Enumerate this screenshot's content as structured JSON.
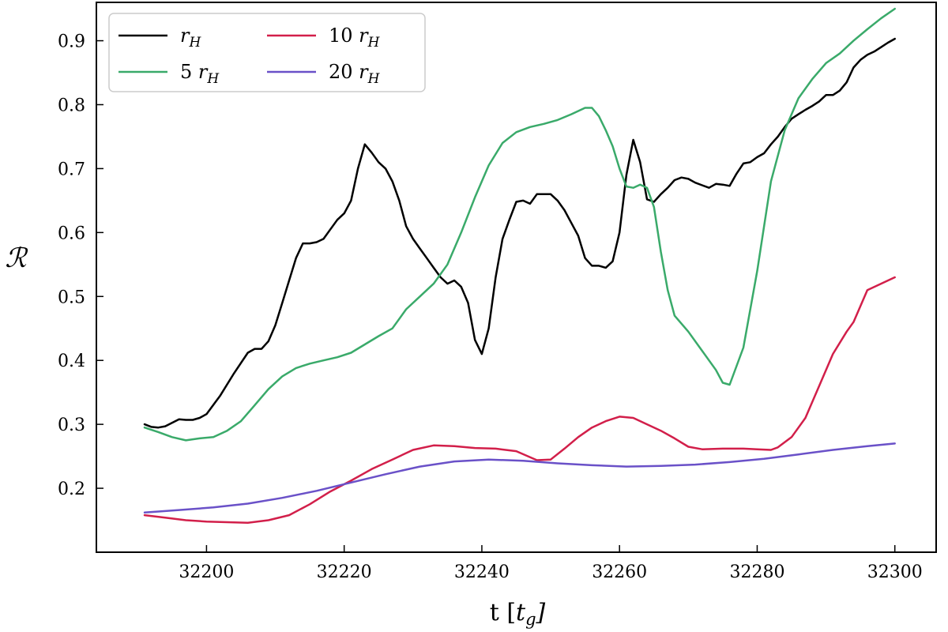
{
  "chart_data": {
    "type": "line",
    "title": "",
    "xlabel": "t [t_g]",
    "ylabel": "ℛ",
    "xlim": [
      32184,
      32306
    ],
    "ylim": [
      0.1,
      0.96
    ],
    "xticks": [
      32200,
      32220,
      32240,
      32260,
      32280,
      32300
    ],
    "yticks": [
      0.2,
      0.3,
      0.4,
      0.5,
      0.6,
      0.7,
      0.8,
      0.9
    ],
    "grid": false,
    "legend_position": "top-left",
    "series": [
      {
        "name": "r_H",
        "color": "#000000",
        "x": [
          32191,
          32192,
          32193,
          32194,
          32196,
          32197,
          32198,
          32199,
          32200,
          32202,
          32204,
          32206,
          32207,
          32208,
          32209,
          32210,
          32211,
          32212,
          32213,
          32214,
          32215,
          32216,
          32217,
          32218,
          32219,
          32220,
          32221,
          32222,
          32223,
          32224,
          32225,
          32226,
          32227,
          32228,
          32229,
          32230,
          32231,
          32232,
          32233,
          32234,
          32235,
          32236,
          32237,
          32238,
          32239,
          32240,
          32241,
          32242,
          32243,
          32244,
          32245,
          32246,
          32247,
          32248,
          32249,
          32250,
          32251,
          32252,
          32253,
          32254,
          32255,
          32256,
          32257,
          32258,
          32259,
          32260,
          32261,
          32262,
          32263,
          32264,
          32265,
          32266,
          32267,
          32268,
          32269,
          32270,
          32271,
          32272,
          32273,
          32274,
          32275,
          32276,
          32277,
          32278,
          32279,
          32280,
          32281,
          32282,
          32283,
          32284,
          32285,
          32286,
          32287,
          32288,
          32289,
          32290,
          32291,
          32292,
          32293,
          32294,
          32295,
          32296,
          32297,
          32298,
          32299,
          32300
        ],
        "values": [
          0.3,
          0.296,
          0.295,
          0.297,
          0.308,
          0.307,
          0.307,
          0.31,
          0.316,
          0.345,
          0.38,
          0.412,
          0.418,
          0.418,
          0.43,
          0.455,
          0.49,
          0.525,
          0.56,
          0.583,
          0.583,
          0.585,
          0.59,
          0.605,
          0.62,
          0.63,
          0.65,
          0.7,
          0.738,
          0.725,
          0.71,
          0.7,
          0.68,
          0.65,
          0.61,
          0.59,
          0.575,
          0.56,
          0.545,
          0.53,
          0.52,
          0.525,
          0.515,
          0.49,
          0.432,
          0.41,
          0.45,
          0.53,
          0.59,
          0.62,
          0.648,
          0.65,
          0.645,
          0.66,
          0.66,
          0.66,
          0.65,
          0.635,
          0.615,
          0.595,
          0.56,
          0.548,
          0.548,
          0.545,
          0.555,
          0.6,
          0.69,
          0.745,
          0.71,
          0.652,
          0.648,
          0.66,
          0.67,
          0.682,
          0.686,
          0.684,
          0.678,
          0.674,
          0.67,
          0.676,
          0.675,
          0.673,
          0.692,
          0.708,
          0.71,
          0.718,
          0.724,
          0.738,
          0.75,
          0.765,
          0.778,
          0.785,
          0.792,
          0.798,
          0.805,
          0.815,
          0.815,
          0.822,
          0.835,
          0.858,
          0.87,
          0.878,
          0.883,
          0.89,
          0.897,
          0.903
        ]
      },
      {
        "name": "5 r_H",
        "color": "#3aaa6a",
        "x": [
          32191,
          32193,
          32195,
          32197,
          32199,
          32201,
          32203,
          32205,
          32207,
          32209,
          32211,
          32213,
          32215,
          32217,
          32219,
          32221,
          32223,
          32225,
          32227,
          32229,
          32231,
          32233,
          32235,
          32237,
          32239,
          32241,
          32243,
          32245,
          32247,
          32249,
          32251,
          32253,
          32255,
          32256,
          32257,
          32258,
          32259,
          32260,
          32261,
          32262,
          32263,
          32264,
          32265,
          32266,
          32267,
          32268,
          32270,
          32272,
          32274,
          32275,
          32276,
          32278,
          32280,
          32282,
          32284,
          32286,
          32288,
          32290,
          32292,
          32294,
          32296,
          32298,
          32300
        ],
        "values": [
          0.295,
          0.288,
          0.28,
          0.275,
          0.278,
          0.28,
          0.29,
          0.305,
          0.33,
          0.355,
          0.375,
          0.388,
          0.395,
          0.4,
          0.405,
          0.412,
          0.425,
          0.438,
          0.45,
          0.48,
          0.5,
          0.52,
          0.55,
          0.6,
          0.655,
          0.705,
          0.74,
          0.757,
          0.765,
          0.77,
          0.776,
          0.785,
          0.795,
          0.795,
          0.782,
          0.76,
          0.735,
          0.7,
          0.672,
          0.67,
          0.675,
          0.67,
          0.64,
          0.57,
          0.51,
          0.47,
          0.445,
          0.415,
          0.385,
          0.365,
          0.362,
          0.42,
          0.54,
          0.68,
          0.76,
          0.81,
          0.84,
          0.865,
          0.88,
          0.9,
          0.918,
          0.935,
          0.95
        ]
      },
      {
        "name": "10 r_H",
        "color": "#d21f4a",
        "x": [
          32191,
          32194,
          32197,
          32200,
          32203,
          32206,
          32209,
          32212,
          32215,
          32218,
          32221,
          32224,
          32227,
          32230,
          32233,
          32236,
          32239,
          32242,
          32245,
          32248,
          32250,
          32252,
          32254,
          32256,
          32258,
          32260,
          32262,
          32264,
          32266,
          32268,
          32270,
          32272,
          32275,
          32278,
          32280,
          32282,
          32283,
          32285,
          32287,
          32289,
          32291,
          32293,
          32294,
          32295,
          32296,
          32298,
          32300
        ],
        "values": [
          0.158,
          0.154,
          0.15,
          0.148,
          0.147,
          0.146,
          0.15,
          0.158,
          0.175,
          0.195,
          0.212,
          0.23,
          0.245,
          0.26,
          0.267,
          0.266,
          0.263,
          0.262,
          0.258,
          0.244,
          0.245,
          0.262,
          0.28,
          0.295,
          0.305,
          0.312,
          0.31,
          0.3,
          0.29,
          0.278,
          0.265,
          0.261,
          0.262,
          0.262,
          0.261,
          0.26,
          0.264,
          0.28,
          0.31,
          0.36,
          0.41,
          0.445,
          0.46,
          0.485,
          0.51,
          0.52,
          0.53
        ]
      },
      {
        "name": "20 r_H",
        "color": "#6a51c8",
        "x": [
          32191,
          32196,
          32201,
          32206,
          32211,
          32216,
          32221,
          32226,
          32231,
          32236,
          32241,
          32246,
          32251,
          32256,
          32261,
          32266,
          32271,
          32276,
          32281,
          32286,
          32291,
          32296,
          32300
        ],
        "values": [
          0.162,
          0.166,
          0.17,
          0.176,
          0.185,
          0.196,
          0.209,
          0.222,
          0.234,
          0.242,
          0.245,
          0.243,
          0.239,
          0.236,
          0.234,
          0.235,
          0.237,
          0.241,
          0.246,
          0.253,
          0.26,
          0.266,
          0.27
        ]
      }
    ]
  }
}
